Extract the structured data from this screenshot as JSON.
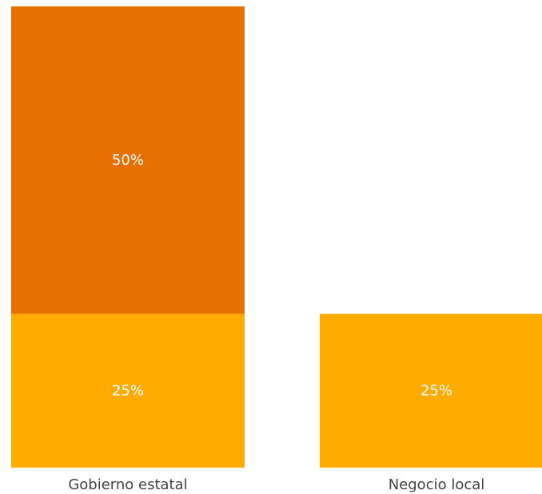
{
  "chart_data": {
    "type": "bar",
    "stacked": true,
    "title": "",
    "xlabel": "",
    "ylabel": "",
    "ylim": [
      0,
      75
    ],
    "grid": false,
    "legend": "none",
    "categories": [
      "Gobierno estatal",
      "Negocio local"
    ],
    "series": [
      {
        "color": "#FFAB00",
        "values": [
          25,
          25
        ],
        "labels": [
          "25%",
          "25%"
        ]
      },
      {
        "color": "#E87000",
        "values": [
          50,
          0
        ],
        "labels": [
          "50%",
          ""
        ]
      }
    ]
  }
}
